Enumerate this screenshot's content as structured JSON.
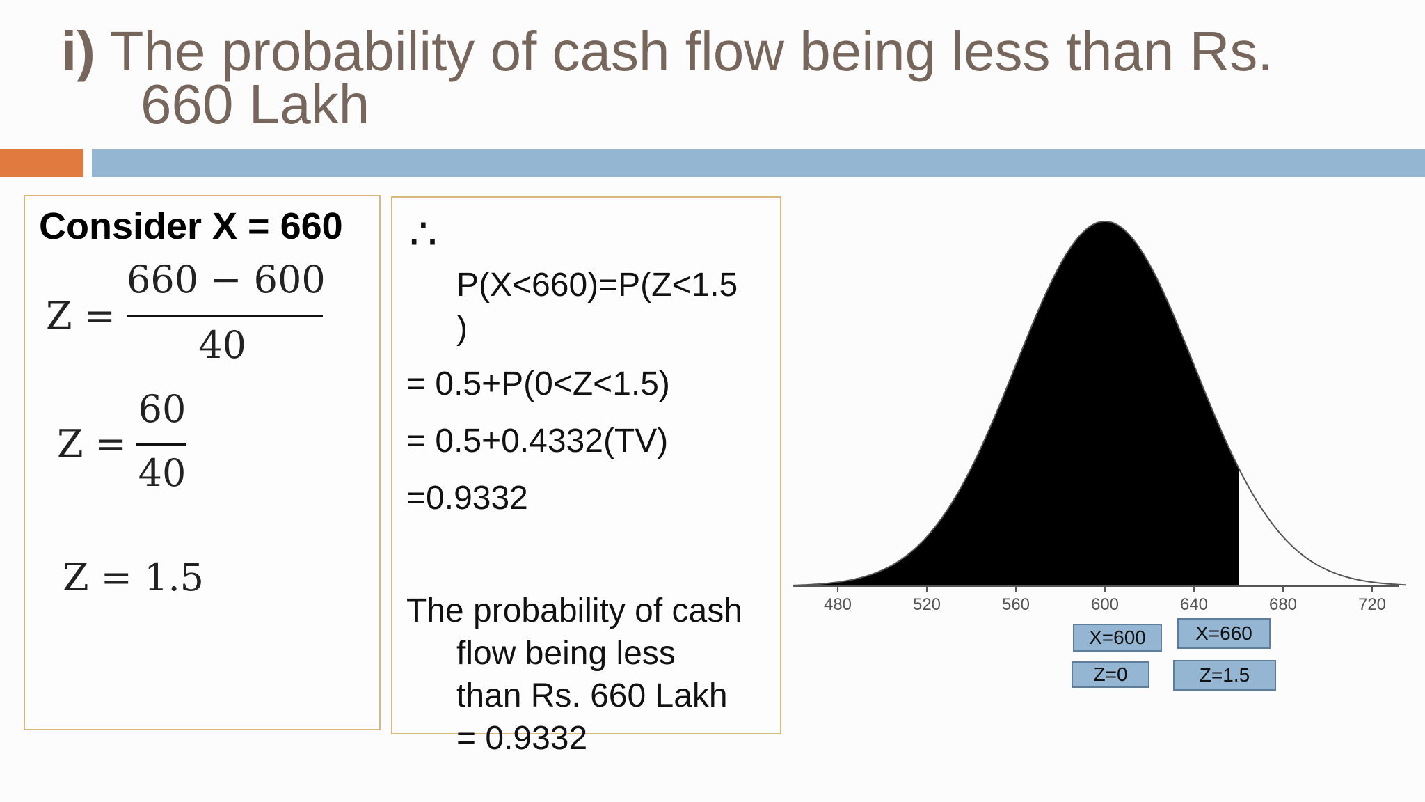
{
  "title": {
    "prefix": "i)",
    "line1": " The probability of cash flow being less than Rs.",
    "line2": "660 Lakh"
  },
  "left_box": {
    "consider": "Consider X = 660",
    "eq1": {
      "lhs": "Z =",
      "numerator": "660 − 600",
      "denominator": "40"
    },
    "eq2": {
      "lhs": "Z =",
      "numerator": "60",
      "denominator": "40"
    },
    "eq3": "Z = 1.5"
  },
  "mid_box": {
    "therefore": "∴",
    "line1a": "P(X<660)=P(Z<1.5",
    "line1b": ")",
    "line2": "= 0.5+P(0<Z<1.5)",
    "line3": "= 0.5+0.4332(TV)",
    "line4": "=0.9332",
    "conclusion": [
      "The probability of cash",
      "flow being less",
      "than Rs. 660 Lakh",
      "= 0.9332"
    ]
  },
  "chart_data": {
    "type": "area",
    "distribution": "normal",
    "mean": 600,
    "sd": 40,
    "shaded_below": 660,
    "x_ticks": [
      "480",
      "520",
      "560",
      "600",
      "640",
      "680",
      "720"
    ],
    "xlim": [
      460,
      735
    ],
    "annotations": [
      "X=600",
      "X=660",
      "Z=0",
      "Z=1.5"
    ],
    "colors": {
      "shaded": "#000000",
      "curve": "#555555",
      "label_box": "#94b6d2"
    }
  }
}
